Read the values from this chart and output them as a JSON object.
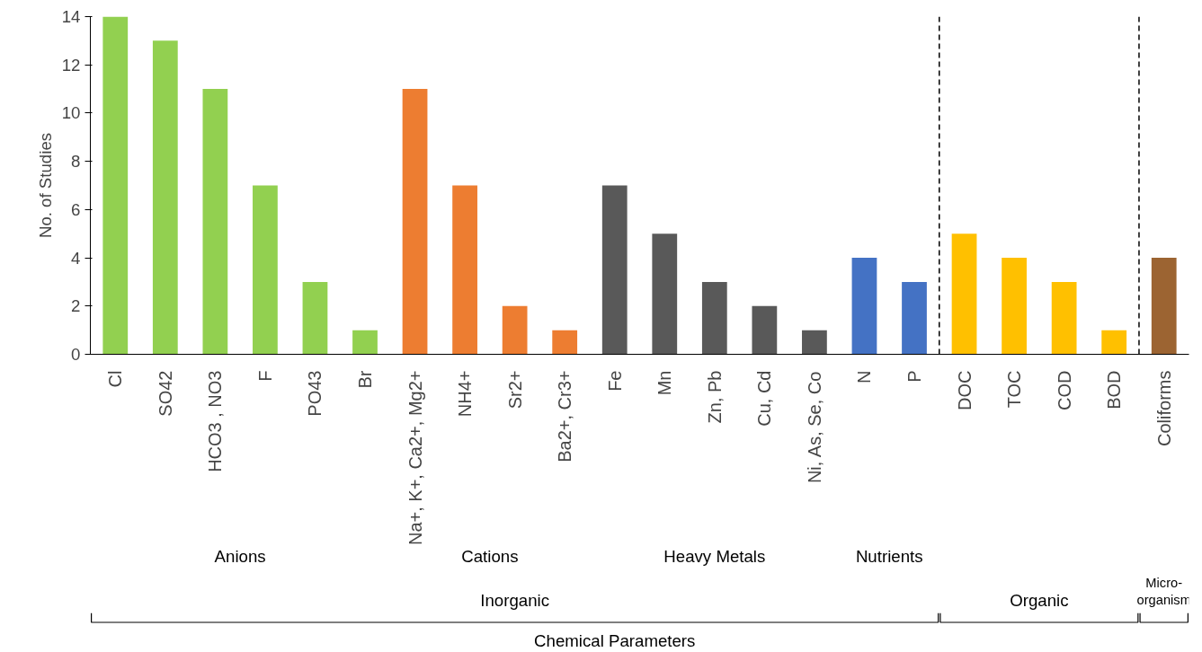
{
  "chart_data": {
    "type": "bar",
    "ylabel": "No. of Studies",
    "categories": [
      "Cl",
      "SO42",
      "HCO3 , NO3",
      "F",
      "PO43",
      "Br",
      "Na+, K+, Ca2+, Mg2+",
      "NH4+",
      "Sr2+",
      "Ba2+, Cr3+",
      "Fe",
      "Mn",
      "Zn, Pb",
      "Cu, Cd",
      "Ni, As, Se, Co",
      "N",
      "P",
      "DOC",
      "TOC",
      "COD",
      "BOD",
      "Coliforms"
    ],
    "values": [
      14,
      13,
      11,
      7,
      3,
      1,
      11,
      7,
      2,
      1,
      7,
      5,
      3,
      2,
      1,
      4,
      3,
      5,
      4,
      3,
      1,
      4
    ],
    "colors": [
      "#92d050",
      "#92d050",
      "#92d050",
      "#92d050",
      "#92d050",
      "#92d050",
      "#ed7d31",
      "#ed7d31",
      "#ed7d31",
      "#ed7d31",
      "#595959",
      "#595959",
      "#595959",
      "#595959",
      "#595959",
      "#4472c4",
      "#4472c4",
      "#ffc000",
      "#ffc000",
      "#ffc000",
      "#ffc000",
      "#9c6432"
    ],
    "ylim": [
      0,
      14
    ],
    "yticks": [
      0,
      2,
      4,
      6,
      8,
      10,
      12,
      14
    ],
    "grid": false,
    "annotations": [
      "Anions",
      "Cations",
      "Heavy Metals",
      "Nutrients",
      "Inorganic",
      "Organic",
      "Micro-organism",
      "Chemical Parameters"
    ]
  }
}
